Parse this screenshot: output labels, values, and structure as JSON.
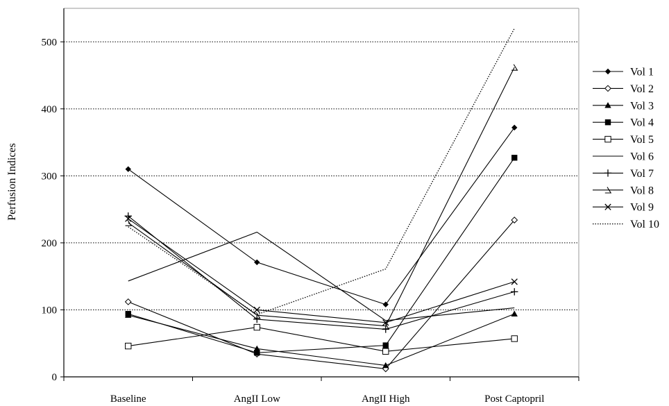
{
  "chart_data": {
    "type": "line",
    "ylabel": "Perfusion Indices",
    "xlabel": "",
    "categories": [
      "Baseline",
      "AngII Low",
      "AngII High",
      "Post Captopril"
    ],
    "ylim": [
      0,
      550
    ],
    "yticks": [
      0,
      100,
      200,
      300,
      400,
      500
    ],
    "grid": "horizontal dotted at y ticks",
    "legend_position": "right",
    "series": [
      {
        "name": "Vol 1",
        "marker": "diamond-filled",
        "dash": "solid",
        "values": [
          310,
          171,
          108,
          372
        ]
      },
      {
        "name": "Vol 2",
        "marker": "diamond-open",
        "dash": "solid",
        "values": [
          112,
          34,
          12,
          234
        ]
      },
      {
        "name": "Vol 3",
        "marker": "triangle-filled",
        "dash": "solid",
        "values": [
          92,
          42,
          17,
          94
        ]
      },
      {
        "name": "Vol 4",
        "marker": "square-filled",
        "dash": "solid",
        "values": [
          94,
          36,
          47,
          327
        ]
      },
      {
        "name": "Vol 5",
        "marker": "square-open",
        "dash": "solid",
        "values": [
          46,
          74,
          38,
          57
        ]
      },
      {
        "name": "Vol 6",
        "marker": "none",
        "dash": "solid",
        "values": [
          143,
          216,
          84,
          103
        ]
      },
      {
        "name": "Vol 7",
        "marker": "plus",
        "dash": "solid",
        "values": [
          240,
          86,
          71,
          127
        ]
      },
      {
        "name": "Vol 8",
        "marker": "half-triangle",
        "dash": "solid",
        "values": [
          230,
          92,
          76,
          462
        ]
      },
      {
        "name": "Vol 9",
        "marker": "x",
        "dash": "solid",
        "values": [
          236,
          100,
          81,
          142
        ]
      },
      {
        "name": "Vol 10",
        "marker": "none",
        "dash": "dotted",
        "values": [
          224,
          93,
          161,
          520
        ]
      }
    ]
  }
}
